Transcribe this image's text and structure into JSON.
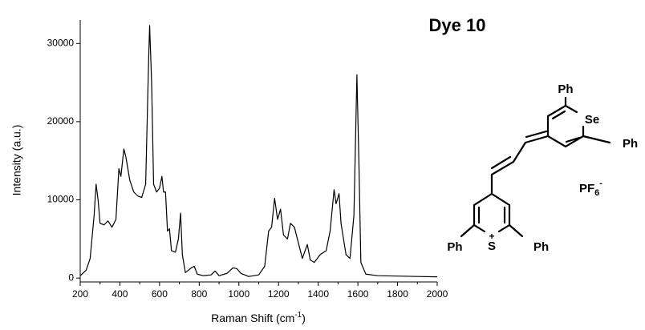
{
  "chart_data": {
    "type": "line",
    "title": "Dye 10",
    "y_label": "Intensity (a.u.)",
    "x_label": {
      "text": "Raman Shift (cm",
      "superscript": "-1",
      "suffix": ")"
    },
    "xlim": [
      200,
      2000
    ],
    "ylim": [
      -500,
      33000
    ],
    "xticks": [
      200,
      400,
      600,
      800,
      1000,
      1200,
      1400,
      1600,
      1800,
      2000
    ],
    "yticks": [
      0,
      10000,
      20000,
      30000
    ],
    "grid": false,
    "series": [
      {
        "name": "Dye 10",
        "color": "#000000",
        "x": [
          200,
          230,
          250,
          270,
          280,
          290,
          300,
          320,
          340,
          360,
          380,
          395,
          405,
          420,
          430,
          450,
          470,
          490,
          510,
          530,
          545,
          550,
          560,
          570,
          585,
          600,
          612,
          620,
          630,
          640,
          650,
          660,
          680,
          695,
          706,
          715,
          730,
          760,
          775,
          790,
          820,
          860,
          880,
          900,
          940,
          970,
          990,
          1010,
          1050,
          1100,
          1130,
          1150,
          1165,
          1180,
          1195,
          1210,
          1225,
          1245,
          1260,
          1280,
          1300,
          1320,
          1345,
          1360,
          1380,
          1410,
          1440,
          1460,
          1480,
          1490,
          1505,
          1515,
          1540,
          1560,
          1580,
          1595,
          1605,
          1615,
          1640,
          1700,
          1800,
          1900,
          2000
        ],
        "values": [
          300,
          1000,
          2500,
          8000,
          12000,
          10000,
          7000,
          6800,
          7300,
          6500,
          7500,
          14000,
          13000,
          16500,
          15500,
          12500,
          11000,
          10500,
          10300,
          12000,
          28000,
          32300,
          25000,
          12000,
          11000,
          11500,
          13000,
          11000,
          11000,
          6000,
          6300,
          3500,
          3300,
          5000,
          8300,
          3000,
          700,
          1300,
          1500,
          500,
          300,
          400,
          900,
          300,
          600,
          1300,
          1200,
          600,
          200,
          400,
          1500,
          6000,
          6500,
          10200,
          7500,
          8800,
          5500,
          5000,
          7000,
          6500,
          4500,
          2500,
          4300,
          2300,
          2000,
          3000,
          3500,
          6000,
          11300,
          9500,
          10800,
          7000,
          3000,
          2500,
          8000,
          26000,
          15000,
          2000,
          500,
          300,
          250,
          200,
          150
        ]
      }
    ],
    "structure_labels": {
      "ph_top": "Ph",
      "se": "Se",
      "ph_right": "Ph",
      "counter_ion": "PF",
      "counter_ion_sub": "6",
      "counter_ion_charge": "-",
      "ph_left_bottom": "Ph",
      "s": "S",
      "s_charge": "+",
      "ph_right_bottom": "Ph"
    }
  }
}
